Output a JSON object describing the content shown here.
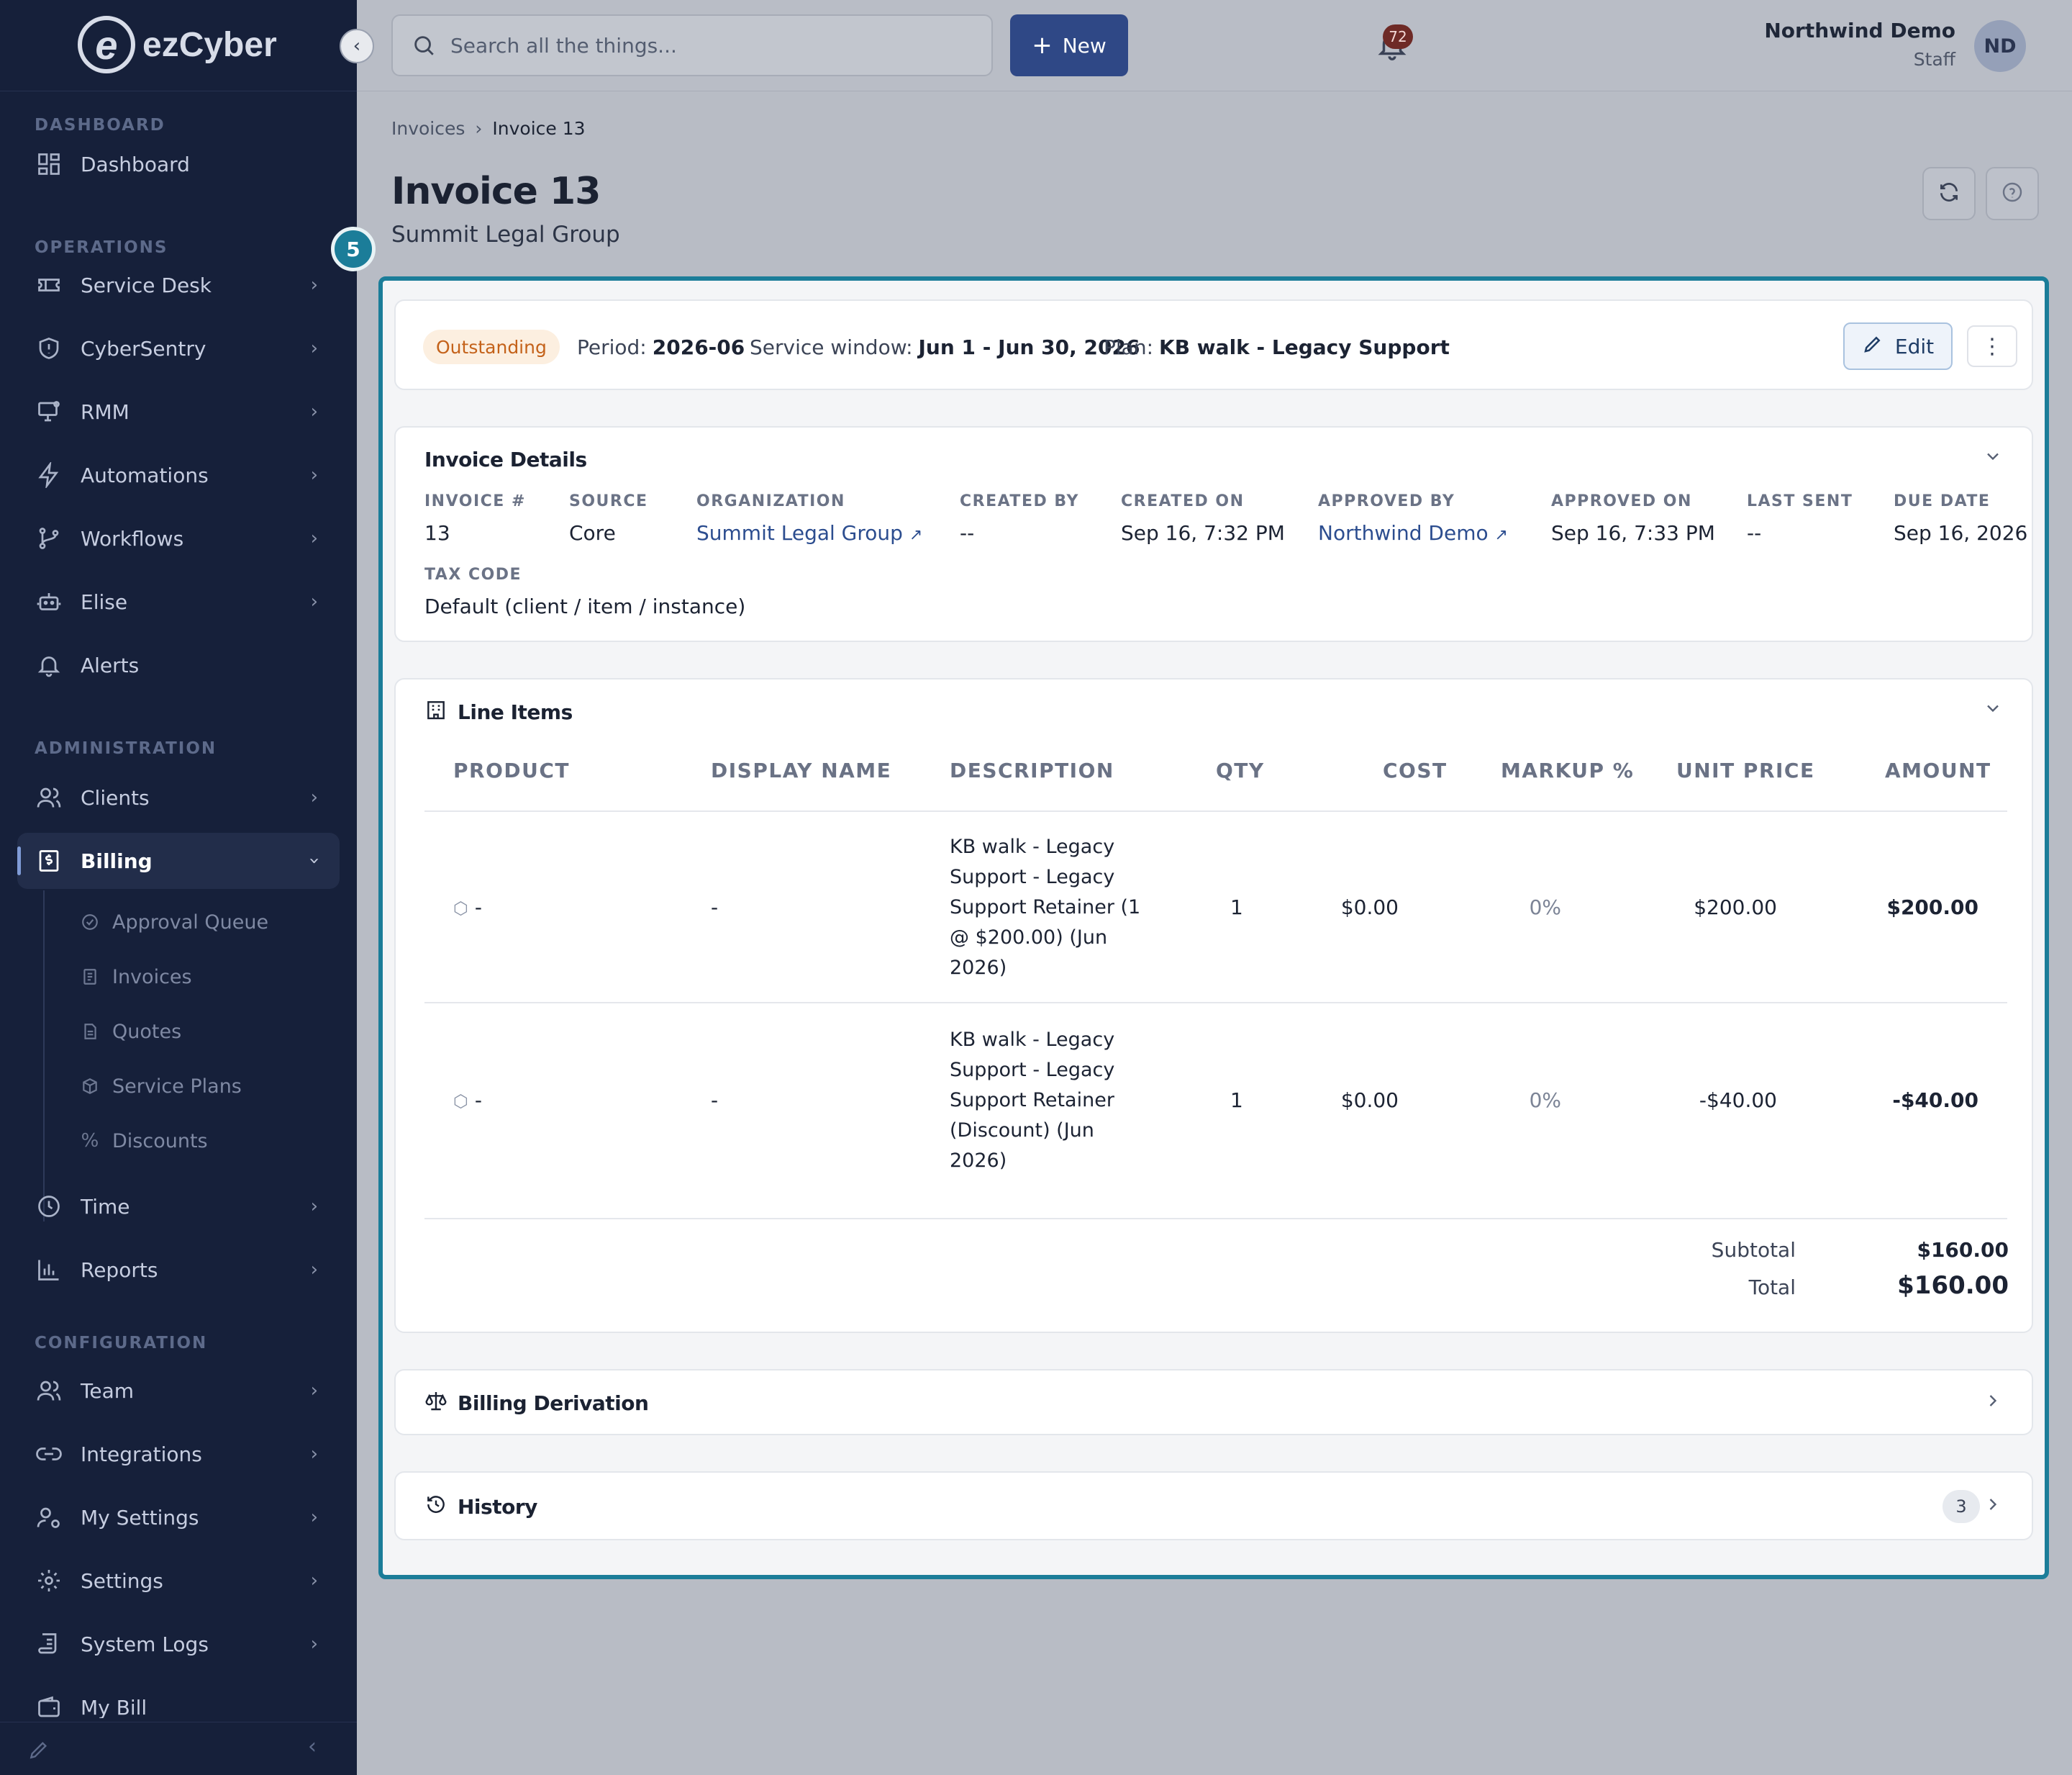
{
  "app": {
    "logo_text": "ezCyber"
  },
  "sidebar": {
    "sections": {
      "dashboard": "DASHBOARD",
      "operations": "OPERATIONS",
      "administration": "ADMINISTRATION",
      "configuration": "CONFIGURATION"
    },
    "items": {
      "dashboard": "Dashboard",
      "service_desk": "Service Desk",
      "cybersentry": "CyberSentry",
      "rmm": "RMM",
      "automations": "Automations",
      "workflows": "Workflows",
      "elise": "Elise",
      "alerts": "Alerts",
      "clients": "Clients",
      "billing": "Billing",
      "time": "Time",
      "reports": "Reports",
      "team": "Team",
      "integrations": "Integrations",
      "my_settings": "My Settings",
      "settings": "Settings",
      "system_logs": "System Logs",
      "my_bill": "My Bill"
    },
    "billing_sub": {
      "approval_queue": "Approval Queue",
      "invoices": "Invoices",
      "quotes": "Quotes",
      "service_plans": "Service Plans",
      "discounts": "Discounts"
    }
  },
  "topbar": {
    "search_placeholder": "Search all the things...",
    "new_label": "New",
    "notification_count": "72",
    "user_name": "Northwind Demo",
    "user_role": "Staff",
    "avatar_initials": "ND"
  },
  "breadcrumb": {
    "parent": "Invoices",
    "current": "Invoice 13"
  },
  "page": {
    "title": "Invoice 13",
    "subtitle": "Summit Legal Group",
    "step_number": "5"
  },
  "summary": {
    "status": "Outstanding",
    "period_label": "Period:",
    "period_value": "2026-06",
    "window_label": "Service window:",
    "window_value": "Jun 1 - Jun 30, 2026",
    "plan_label": "Plan:",
    "plan_value": "KB walk - Legacy Support",
    "edit_label": "Edit"
  },
  "details": {
    "title": "Invoice Details",
    "fields": {
      "invoice_no": {
        "label": "INVOICE #",
        "value": "13"
      },
      "source": {
        "label": "SOURCE",
        "value": "Core"
      },
      "organization": {
        "label": "ORGANIZATION",
        "value": "Summit Legal Group"
      },
      "created_by": {
        "label": "CREATED BY",
        "value": "--"
      },
      "created_on": {
        "label": "CREATED ON",
        "value": "Sep 16, 7:32 PM"
      },
      "approved_by": {
        "label": "APPROVED BY",
        "value": "Northwind Demo"
      },
      "approved_on": {
        "label": "APPROVED ON",
        "value": "Sep 16, 7:33 PM"
      },
      "last_sent": {
        "label": "LAST SENT",
        "value": "--"
      },
      "due_date": {
        "label": "DUE DATE",
        "value": "Sep 16, 2026"
      },
      "tax_code": {
        "label": "TAX CODE",
        "value": "Default (client / item / instance)"
      }
    }
  },
  "line_items": {
    "title": "Line Items",
    "columns": {
      "product": "PRODUCT",
      "display_name": "DISPLAY NAME",
      "description": "DESCRIPTION",
      "qty": "QTY",
      "cost": "COST",
      "markup": "MARKUP %",
      "unit_price": "UNIT PRICE",
      "amount": "AMOUNT"
    },
    "rows": [
      {
        "product": "-",
        "display_name": "-",
        "description": "KB walk - Legacy Support - Legacy Support Retainer (1 @ $200.00) (Jun 2026)",
        "qty": "1",
        "cost": "$0.00",
        "markup": "0%",
        "unit_price": "$200.00",
        "amount": "$200.00"
      },
      {
        "product": "-",
        "display_name": "-",
        "description": "KB walk - Legacy Support - Legacy Support Retainer (Discount) (Jun 2026)",
        "qty": "1",
        "cost": "$0.00",
        "markup": "0%",
        "unit_price": "-$40.00",
        "amount": "-$40.00"
      }
    ],
    "subtotal_label": "Subtotal",
    "subtotal_value": "$160.00",
    "total_label": "Total",
    "total_value": "$160.00"
  },
  "billing_derivation": {
    "title": "Billing Derivation"
  },
  "history": {
    "title": "History",
    "count": "3"
  },
  "colors": {
    "sidebar_bg": "#16203a",
    "accent": "#1b7d99",
    "primary_button": "#2f4886",
    "status_text": "#c4621a"
  }
}
